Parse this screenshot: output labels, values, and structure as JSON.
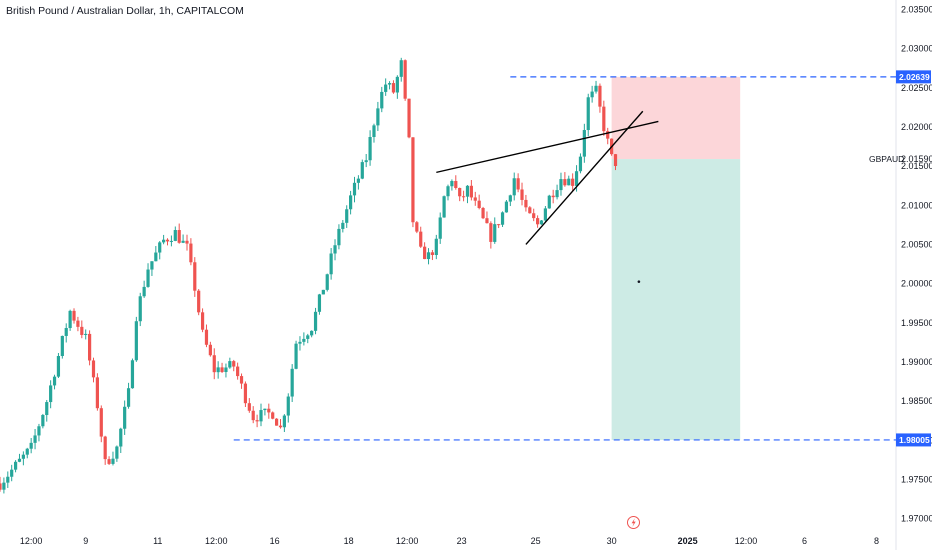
{
  "title": "British Pound / Australian Dollar, 1h, CAPITALCOM",
  "colors": {
    "up": "#26a69a",
    "down": "#ef5350",
    "stop_zone": "#fcd6d9",
    "target_zone": "#cdebe5",
    "dashed_line": "#2962ff",
    "price_tag": "#2962ff",
    "trend_line": "#000000"
  },
  "icons": {
    "bottom_marker": "lightning-icon"
  },
  "chart_data": {
    "type": "candlestick",
    "symbol": "GBPAUD",
    "timeframe": "1h",
    "y_axis": {
      "range": [
        1.9683,
        2.0362
      ],
      "ticks": [
        "2.03500",
        "2.03000",
        "2.02500",
        "2.02000",
        "2.01500",
        "2.01000",
        "2.00500",
        "2.00000",
        "1.99500",
        "1.99000",
        "1.98500",
        "1.98000",
        "1.97500",
        "1.97000"
      ]
    },
    "x_axis": {
      "range": [
        0,
        230
      ],
      "ticks": [
        {
          "label": "12:00",
          "x": 8
        },
        {
          "label": "9",
          "x": 22
        },
        {
          "label": "11",
          "x": 40.5
        },
        {
          "label": "12:00",
          "x": 55.5
        },
        {
          "label": "16",
          "x": 70.5
        },
        {
          "label": "18",
          "x": 89.5
        },
        {
          "label": "12:00",
          "x": 104.5
        },
        {
          "label": "23",
          "x": 118.5
        },
        {
          "label": "25",
          "x": 137.5
        },
        {
          "label": "30",
          "x": 157
        },
        {
          "label": "2025",
          "x": 176.5
        },
        {
          "label": "12:00",
          "x": 191.5
        },
        {
          "label": "6",
          "x": 206.5
        },
        {
          "label": "8",
          "x": 225
        }
      ]
    },
    "price_labels": [
      {
        "text": "2.02639",
        "value": 2.02639,
        "style": "tag"
      },
      {
        "text": "2.01590",
        "value": 2.0159,
        "style": "symbol"
      },
      {
        "text": "1.98005",
        "value": 1.98005,
        "style": "tag"
      }
    ],
    "current_symbol_label": "GBPAUD",
    "keypoints": [
      [
        0,
        1.9745
      ],
      [
        8,
        1.979
      ],
      [
        12,
        1.985
      ],
      [
        18,
        1.9965
      ],
      [
        22,
        1.993
      ],
      [
        25,
        1.9845
      ],
      [
        27,
        1.977
      ],
      [
        30,
        1.979
      ],
      [
        33,
        1.986
      ],
      [
        35,
        1.996
      ],
      [
        38,
        2.002
      ],
      [
        42,
        2.0055
      ],
      [
        45,
        2.0065
      ],
      [
        48,
        2.0045
      ],
      [
        50,
        1.9995
      ],
      [
        52,
        1.9935
      ],
      [
        55,
        1.989
      ],
      [
        60,
        1.9895
      ],
      [
        63,
        1.9855
      ],
      [
        65,
        1.983
      ],
      [
        70,
        1.9835
      ],
      [
        72,
        1.9815
      ],
      [
        74,
        1.986
      ],
      [
        76,
        1.9925
      ],
      [
        80,
        1.9945
      ],
      [
        83,
        1.9995
      ],
      [
        86,
        2.005
      ],
      [
        90,
        2.011
      ],
      [
        94,
        2.016
      ],
      [
        97,
        2.023
      ],
      [
        99,
        2.0255
      ],
      [
        101,
        2.0245
      ],
      [
        103,
        2.028
      ],
      [
        105,
        2.018
      ],
      [
        106,
        2.008
      ],
      [
        108,
        2.004
      ],
      [
        110,
        2.0035
      ],
      [
        112,
        2.005
      ],
      [
        114,
        2.011
      ],
      [
        116,
        2.0135
      ],
      [
        118,
        2.0105
      ],
      [
        120,
        2.012
      ],
      [
        123,
        2.009
      ],
      [
        126,
        2.006
      ],
      [
        129,
        2.009
      ],
      [
        132,
        2.0135
      ],
      [
        135,
        2.009
      ],
      [
        138,
        2.0075
      ],
      [
        141,
        2.011
      ],
      [
        144,
        2.0135
      ],
      [
        147,
        2.013
      ],
      [
        149,
        2.0165
      ],
      [
        151,
        2.0235
      ],
      [
        153,
        2.0245
      ],
      [
        155,
        2.02
      ],
      [
        157,
        2.016
      ],
      [
        158,
        2.0155
      ]
    ],
    "candle_range": [
      0,
      158
    ],
    "candle_count": 159,
    "trend_lines": [
      {
        "from": [
          112,
          2.0142
        ],
        "to": [
          169,
          2.0207
        ]
      },
      {
        "from": [
          135,
          2.005
        ],
        "to": [
          165,
          2.022
        ]
      }
    ],
    "dashed_levels": [
      {
        "value": 2.02639,
        "from_x": 131
      },
      {
        "value": 1.98005,
        "from_x": 60
      }
    ],
    "position": {
      "direction": "short",
      "entry": 2.0159,
      "stop": 2.02639,
      "target": 1.98005,
      "x_start": 157,
      "x_end": 190
    },
    "marker_point": [
      164,
      2.00025
    ]
  }
}
